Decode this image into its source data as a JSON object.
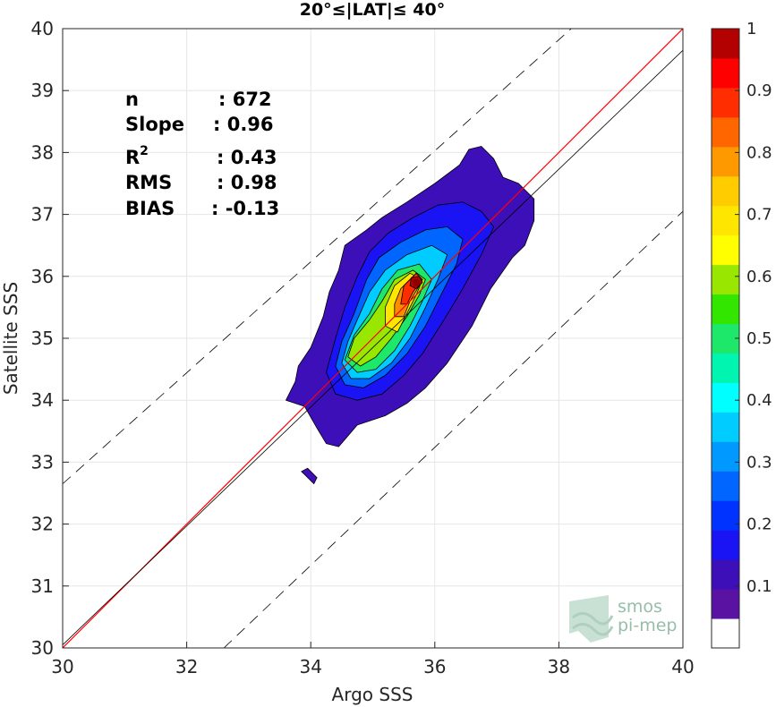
{
  "chart_data": {
    "type": "heatmap",
    "title": "20°≤|LAT|≤ 40°",
    "xlabel": "Argo SSS",
    "ylabel": "Satellite SSS",
    "xlim": [
      30,
      40
    ],
    "ylim": [
      30,
      40
    ],
    "xticks": [
      "30",
      "32",
      "34",
      "36",
      "38",
      "40"
    ],
    "yticks": [
      "30",
      "31",
      "32",
      "33",
      "34",
      "35",
      "36",
      "37",
      "38",
      "39",
      "40"
    ],
    "grid": true,
    "stats": [
      {
        "label": "n",
        "value": ": 672"
      },
      {
        "label": "Slope",
        "value": ": 0.96"
      },
      {
        "label": "R",
        "sup": "2",
        "value": ": 0.43"
      },
      {
        "label": "RMS",
        "value": ": 0.98"
      },
      {
        "label": "BIAS",
        "value": ": -0.13"
      }
    ],
    "lines": [
      {
        "name": "one-to-one",
        "color": "#ff0000",
        "style": "solid",
        "points": [
          [
            30,
            30
          ],
          [
            40,
            40
          ]
        ]
      },
      {
        "name": "regression",
        "color": "#000000",
        "style": "solid",
        "points": [
          [
            30,
            30.05
          ],
          [
            40,
            39.65
          ]
        ]
      },
      {
        "name": "upper-bound",
        "color": "#000000",
        "style": "dashed",
        "points": [
          [
            30,
            32.65
          ],
          [
            38.2,
            40
          ]
        ]
      },
      {
        "name": "lower-bound",
        "color": "#000000",
        "style": "dashed",
        "points": [
          [
            32.6,
            30
          ],
          [
            40,
            37.05
          ]
        ]
      }
    ],
    "density_peak": {
      "x": 35.7,
      "y": 35.9,
      "value": 1.0
    },
    "contour_levels": [
      {
        "level": 0.05,
        "color": "#3d0fb8",
        "points": [
          [
            33.75,
            34.3
          ],
          [
            33.6,
            34.0
          ],
          [
            33.9,
            33.9
          ],
          [
            34.1,
            33.55
          ],
          [
            34.25,
            33.3
          ],
          [
            34.45,
            33.25
          ],
          [
            34.75,
            33.6
          ],
          [
            35.2,
            33.75
          ],
          [
            35.55,
            33.95
          ],
          [
            35.85,
            34.2
          ],
          [
            36.2,
            34.6
          ],
          [
            36.6,
            35.2
          ],
          [
            36.9,
            35.8
          ],
          [
            37.25,
            36.3
          ],
          [
            37.45,
            36.5
          ],
          [
            37.6,
            36.9
          ],
          [
            37.6,
            37.25
          ],
          [
            37.35,
            37.5
          ],
          [
            37.1,
            37.6
          ],
          [
            36.95,
            37.9
          ],
          [
            36.75,
            38.1
          ],
          [
            36.55,
            38.05
          ],
          [
            36.4,
            37.8
          ],
          [
            36.0,
            37.5
          ],
          [
            35.55,
            37.2
          ],
          [
            35.15,
            36.95
          ],
          [
            34.9,
            36.75
          ],
          [
            34.55,
            36.5
          ],
          [
            34.45,
            36.1
          ],
          [
            34.3,
            35.75
          ],
          [
            34.2,
            35.35
          ],
          [
            34.0,
            34.85
          ],
          [
            33.8,
            34.55
          ]
        ]
      },
      {
        "level": 0.15,
        "color": "#1a14f5",
        "points": [
          [
            34.25,
            34.45
          ],
          [
            34.4,
            34.1
          ],
          [
            34.75,
            34.0
          ],
          [
            35.15,
            34.1
          ],
          [
            35.5,
            34.4
          ],
          [
            35.8,
            34.75
          ],
          [
            36.15,
            35.3
          ],
          [
            36.45,
            35.8
          ],
          [
            36.75,
            36.35
          ],
          [
            36.95,
            36.8
          ],
          [
            36.75,
            37.05
          ],
          [
            36.45,
            37.2
          ],
          [
            36.05,
            37.15
          ],
          [
            35.65,
            36.95
          ],
          [
            35.25,
            36.7
          ],
          [
            34.95,
            36.4
          ],
          [
            34.75,
            36.0
          ],
          [
            34.55,
            35.5
          ],
          [
            34.4,
            35.0
          ]
        ]
      },
      {
        "level": 0.25,
        "color": "#0066ff",
        "points": [
          [
            34.4,
            34.55
          ],
          [
            34.55,
            34.25
          ],
          [
            34.85,
            34.2
          ],
          [
            35.2,
            34.4
          ],
          [
            35.55,
            34.75
          ],
          [
            35.85,
            35.2
          ],
          [
            36.1,
            35.7
          ],
          [
            36.35,
            36.2
          ],
          [
            36.45,
            36.6
          ],
          [
            36.2,
            36.8
          ],
          [
            35.85,
            36.75
          ],
          [
            35.45,
            36.55
          ],
          [
            35.1,
            36.3
          ],
          [
            34.9,
            35.95
          ],
          [
            34.7,
            35.4
          ],
          [
            34.5,
            34.95
          ]
        ]
      },
      {
        "level": 0.35,
        "color": "#00ccff",
        "points": [
          [
            34.5,
            34.6
          ],
          [
            34.65,
            34.35
          ],
          [
            34.95,
            34.35
          ],
          [
            35.3,
            34.6
          ],
          [
            35.6,
            35.0
          ],
          [
            35.85,
            35.5
          ],
          [
            36.05,
            35.95
          ],
          [
            36.2,
            36.35
          ],
          [
            35.95,
            36.5
          ],
          [
            35.55,
            36.35
          ],
          [
            35.2,
            36.1
          ],
          [
            34.95,
            35.75
          ],
          [
            34.75,
            35.3
          ],
          [
            34.6,
            34.95
          ]
        ]
      },
      {
        "level": 0.45,
        "color": "#1ee86a",
        "points": [
          [
            34.55,
            34.65
          ],
          [
            34.75,
            34.45
          ],
          [
            35.05,
            34.5
          ],
          [
            35.35,
            34.8
          ],
          [
            35.6,
            35.2
          ],
          [
            35.8,
            35.6
          ],
          [
            35.95,
            35.95
          ],
          [
            35.75,
            36.2
          ],
          [
            35.4,
            36.1
          ],
          [
            35.15,
            35.8
          ],
          [
            34.95,
            35.4
          ],
          [
            34.7,
            35.05
          ]
        ]
      },
      {
        "level": 0.55,
        "color": "#99e600",
        "points": [
          [
            34.6,
            34.7
          ],
          [
            34.8,
            34.55
          ],
          [
            35.05,
            34.7
          ],
          [
            35.3,
            35.0
          ],
          [
            35.55,
            35.35
          ],
          [
            35.75,
            35.7
          ],
          [
            35.85,
            35.95
          ],
          [
            35.65,
            36.1
          ],
          [
            35.35,
            35.95
          ],
          [
            35.15,
            35.6
          ],
          [
            34.95,
            35.3
          ],
          [
            34.7,
            35.0
          ]
        ]
      },
      {
        "level": 0.65,
        "color": "#ffe600",
        "points": [
          [
            35.2,
            35.2
          ],
          [
            35.4,
            35.1
          ],
          [
            35.55,
            35.4
          ],
          [
            35.7,
            35.7
          ],
          [
            35.8,
            35.95
          ],
          [
            35.6,
            36.05
          ],
          [
            35.35,
            35.85
          ],
          [
            35.2,
            35.5
          ]
        ]
      },
      {
        "level": 0.75,
        "color": "#ff8c00",
        "points": [
          [
            35.35,
            35.35
          ],
          [
            35.5,
            35.35
          ],
          [
            35.6,
            35.6
          ],
          [
            35.75,
            35.85
          ],
          [
            35.65,
            36.0
          ],
          [
            35.45,
            35.8
          ],
          [
            35.35,
            35.55
          ]
        ]
      },
      {
        "level": 0.85,
        "color": "#ff2d00",
        "points": [
          [
            35.45,
            35.55
          ],
          [
            35.55,
            35.55
          ],
          [
            35.65,
            35.75
          ],
          [
            35.8,
            35.95
          ],
          [
            35.7,
            36.05
          ],
          [
            35.5,
            35.85
          ]
        ]
      },
      {
        "level": 0.95,
        "color": "#b30000",
        "points": [
          [
            35.6,
            35.85
          ],
          [
            35.7,
            35.8
          ],
          [
            35.8,
            35.9
          ],
          [
            35.75,
            36.0
          ],
          [
            35.62,
            35.98
          ]
        ]
      }
    ],
    "outlier_blob": {
      "color": "#3d0fb8",
      "points": [
        [
          33.85,
          32.85
        ],
        [
          33.95,
          32.9
        ],
        [
          34.1,
          32.75
        ],
        [
          34.05,
          32.65
        ],
        [
          33.9,
          32.8
        ]
      ]
    },
    "colorbar": {
      "min": 0,
      "max": 1,
      "ticks": [
        "0.1",
        "0.2",
        "0.3",
        "0.4",
        "0.5",
        "0.6",
        "0.7",
        "0.8",
        "0.9",
        "1"
      ],
      "colors": [
        "#ffffff",
        "#5a12a3",
        "#3d0fb8",
        "#1a14f5",
        "#0033ff",
        "#0066ff",
        "#0099ff",
        "#00ccff",
        "#00ffff",
        "#00f5b0",
        "#1ee86a",
        "#33e600",
        "#99e600",
        "#ffff00",
        "#ffe600",
        "#ffcc00",
        "#ff9900",
        "#ff6600",
        "#ff2d00",
        "#ff0000",
        "#b30000"
      ]
    },
    "logo": {
      "line1": "smos",
      "line2": "pi-mep"
    }
  }
}
